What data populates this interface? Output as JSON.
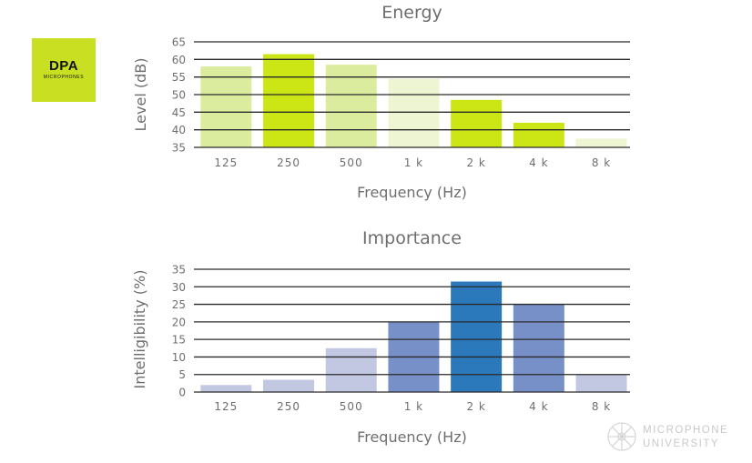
{
  "logo": {
    "brand": "DPA",
    "sub": "MICROPHONES"
  },
  "watermark": {
    "line1": "MICROPHONE",
    "line2": "UNIVERSITY"
  },
  "chart_data": [
    {
      "type": "bar",
      "title": "Energy",
      "xlabel": "Frequency (Hz)",
      "ylabel": "Level (dB)",
      "categories": [
        "125",
        "250",
        "500",
        "1 k",
        "2 k",
        "4 k",
        "8 k"
      ],
      "values": [
        58,
        61.5,
        58.5,
        54.5,
        48.5,
        42,
        37.5
      ],
      "ylim": [
        35,
        65
      ],
      "yticks": [
        35,
        40,
        45,
        50,
        55,
        60,
        65
      ],
      "grid": true,
      "colors": [
        "#dcec9e",
        "#cbe614",
        "#dcec9e",
        "#eef5d2",
        "#cbe614",
        "#cbe614",
        "#eef5d2"
      ]
    },
    {
      "type": "bar",
      "title": "Importance",
      "xlabel": "Frequency (Hz)",
      "ylabel": "Intelligibility (%)",
      "categories": [
        "125",
        "250",
        "500",
        "1 k",
        "2 k",
        "4 k",
        "8 k"
      ],
      "values": [
        2,
        3.5,
        12.5,
        20,
        31.5,
        25,
        5
      ],
      "ylim": [
        0,
        35
      ],
      "yticks": [
        0,
        5,
        10,
        15,
        20,
        25,
        30,
        35
      ],
      "grid": true,
      "colors": [
        "#c2c8e2",
        "#c2c8e2",
        "#c2c8e2",
        "#7890c8",
        "#2b78bb",
        "#7890c8",
        "#c2c8e2"
      ]
    }
  ]
}
